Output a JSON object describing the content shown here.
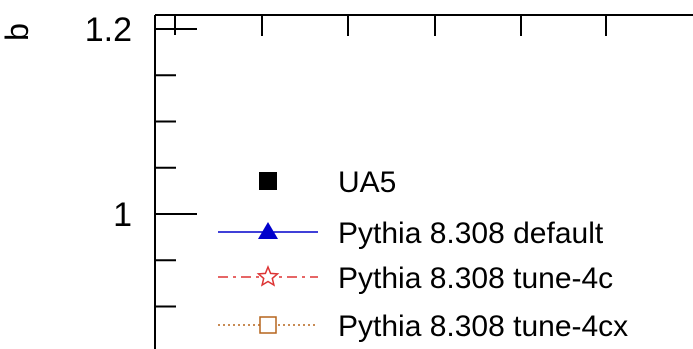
{
  "chart_data": {
    "type": "line",
    "title": "",
    "xlabel": "",
    "ylabel": "b",
    "ylim": [
      0.89,
      1.22
    ],
    "y_ticks": [
      {
        "value": 1.2,
        "label": "1.2"
      },
      {
        "value": 1.0,
        "label": "1"
      }
    ],
    "legend": {
      "placement": "bottom-right",
      "entries": [
        {
          "label": "UA5",
          "color": "#000000",
          "marker": "filled-square",
          "line": "none"
        },
        {
          "label": "Pythia 8.308 default",
          "color": "#0000cc",
          "marker": "filled-triangle",
          "line": "solid"
        },
        {
          "label": "Pythia 8.308 tune-4c",
          "color": "#dd3333",
          "marker": "open-star",
          "line": "dash-dot"
        },
        {
          "label": "Pythia 8.308 tune-4cx",
          "color": "#b5651d",
          "marker": "open-square",
          "line": "dotted"
        }
      ]
    },
    "series": [],
    "grid": false
  }
}
